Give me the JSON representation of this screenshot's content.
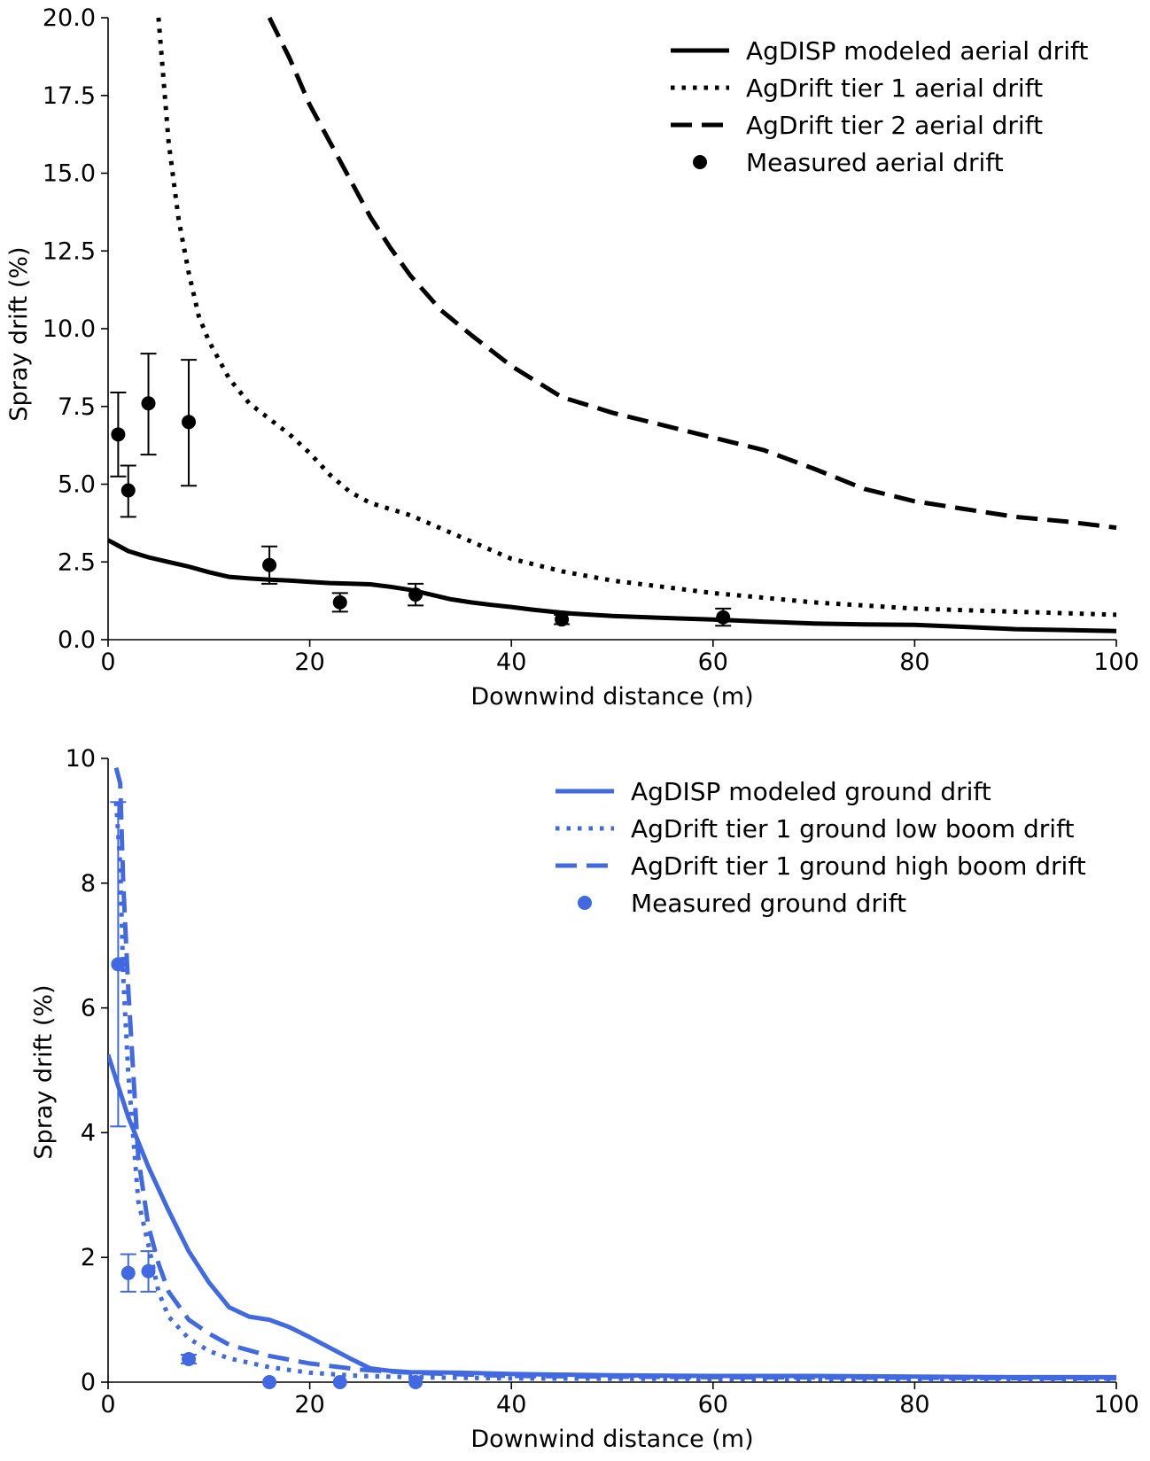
{
  "chart_data": [
    {
      "type": "line",
      "xlabel": "Downwind distance (m)",
      "ylabel": "Spray drift (%)",
      "xlim": [
        0,
        100
      ],
      "ylim": [
        0,
        20
      ],
      "xticks": [
        0,
        20,
        40,
        60,
        80,
        100
      ],
      "yticks": [
        0.0,
        2.5,
        5.0,
        7.5,
        10.0,
        12.5,
        15.0,
        17.5,
        20.0
      ],
      "ytick_labels": [
        "0.0",
        "2.5",
        "5.0",
        "7.5",
        "10.0",
        "12.5",
        "15.0",
        "17.5",
        "20.0"
      ],
      "xtick_labels": [
        "0",
        "20",
        "40",
        "60",
        "80",
        "100"
      ],
      "color": "#000000",
      "legend_position": "top-right",
      "series": [
        {
          "name": "AgDISP modeled aerial drift",
          "style": "solid",
          "x": [
            0,
            2,
            4,
            6,
            8,
            10,
            12,
            14,
            16,
            18,
            20,
            22,
            24,
            26,
            28,
            30,
            32,
            34,
            36,
            38,
            40,
            42,
            44,
            46,
            48,
            50,
            55,
            60,
            65,
            70,
            75,
            80,
            85,
            90,
            95,
            100
          ],
          "y": [
            3.2,
            2.85,
            2.65,
            2.5,
            2.35,
            2.17,
            2.02,
            1.97,
            1.93,
            1.9,
            1.86,
            1.82,
            1.8,
            1.78,
            1.7,
            1.6,
            1.45,
            1.3,
            1.2,
            1.12,
            1.05,
            0.97,
            0.9,
            0.84,
            0.8,
            0.76,
            0.7,
            0.65,
            0.58,
            0.52,
            0.49,
            0.48,
            0.41,
            0.34,
            0.31,
            0.28
          ]
        },
        {
          "name": "AgDrift tier 1 aerial drift",
          "style": "dotted",
          "x": [
            5,
            6,
            7,
            8,
            9,
            10,
            12,
            14,
            16,
            18,
            20,
            22,
            24,
            26,
            28,
            30,
            35,
            40,
            45,
            50,
            55,
            60,
            65,
            70,
            75,
            80,
            85,
            90,
            95,
            100
          ],
          "y": [
            20.0,
            16.0,
            13.5,
            11.8,
            10.4,
            9.6,
            8.4,
            7.6,
            7.1,
            6.6,
            6.0,
            5.3,
            4.75,
            4.4,
            4.2,
            4.0,
            3.3,
            2.6,
            2.2,
            1.9,
            1.7,
            1.5,
            1.35,
            1.2,
            1.1,
            1.0,
            0.95,
            0.9,
            0.85,
            0.8
          ]
        },
        {
          "name": "AgDrift tier 2 aerial drift",
          "style": "dashed",
          "x": [
            16,
            18,
            20,
            22,
            24,
            26,
            28,
            30,
            33,
            36,
            40,
            45,
            50,
            55,
            60,
            65,
            70,
            75,
            80,
            85,
            90,
            95,
            100
          ],
          "y": [
            20.0,
            18.7,
            17.2,
            16.0,
            14.8,
            13.6,
            12.6,
            11.7,
            10.6,
            9.8,
            8.8,
            7.8,
            7.3,
            6.9,
            6.5,
            6.1,
            5.5,
            4.85,
            4.45,
            4.2,
            3.95,
            3.8,
            3.6
          ]
        }
      ],
      "measured": {
        "name": "Measured aerial drift",
        "x": [
          1,
          2,
          4,
          8,
          16,
          23,
          30.5,
          45,
          61
        ],
        "y": [
          6.6,
          4.8,
          7.6,
          7.0,
          2.4,
          1.2,
          1.45,
          0.65,
          0.72
        ],
        "err_low": [
          5.25,
          3.95,
          5.95,
          4.95,
          1.8,
          0.9,
          1.1,
          0.5,
          0.45
        ],
        "err_high": [
          7.95,
          5.6,
          9.2,
          9.0,
          3.0,
          1.5,
          1.8,
          0.8,
          1.0
        ]
      }
    },
    {
      "type": "line",
      "xlabel": "Downwind distance (m)",
      "ylabel": "Spray drift (%)",
      "xlim": [
        0,
        100
      ],
      "ylim": [
        0,
        10
      ],
      "xticks": [
        0,
        20,
        40,
        60,
        80,
        100
      ],
      "yticks": [
        0,
        2,
        4,
        6,
        8,
        10
      ],
      "ytick_labels": [
        "0",
        "2",
        "4",
        "6",
        "8",
        "10"
      ],
      "xtick_labels": [
        "0",
        "20",
        "40",
        "60",
        "80",
        "100"
      ],
      "color": "#4169e1",
      "legend_position": "top-right",
      "series": [
        {
          "name": "AgDISP modeled ground drift",
          "style": "solid",
          "x": [
            0,
            2,
            4,
            6,
            8,
            10,
            12,
            14,
            16,
            18,
            20,
            22,
            24,
            26,
            28,
            30,
            35,
            40,
            50,
            60,
            70,
            80,
            90,
            100
          ],
          "y": [
            5.25,
            4.25,
            3.45,
            2.75,
            2.1,
            1.6,
            1.2,
            1.05,
            1.0,
            0.88,
            0.72,
            0.55,
            0.38,
            0.22,
            0.18,
            0.16,
            0.15,
            0.13,
            0.11,
            0.1,
            0.1,
            0.09,
            0.08,
            0.08
          ]
        },
        {
          "name": "AgDrift tier 1 ground low boom drift",
          "style": "dotted",
          "x": [
            0.8,
            1.2,
            1.5,
            2,
            3,
            4,
            5,
            6,
            8,
            10,
            12,
            16,
            20,
            25,
            30,
            40,
            60,
            80,
            100
          ],
          "y": [
            9.3,
            8.3,
            6.5,
            4.95,
            2.9,
            2.2,
            1.45,
            1.05,
            0.7,
            0.5,
            0.38,
            0.24,
            0.15,
            0.1,
            0.08,
            0.06,
            0.05,
            0.04,
            0.04
          ]
        },
        {
          "name": "AgDrift tier 1 ground high boom drift",
          "style": "dashed",
          "x": [
            0.8,
            1.2,
            1.5,
            2,
            3,
            4,
            5,
            6,
            8,
            10,
            12,
            16,
            20,
            25,
            30,
            40,
            60,
            80,
            100
          ],
          "y": [
            9.85,
            9.6,
            8.0,
            6.3,
            3.6,
            2.5,
            1.9,
            1.45,
            1.0,
            0.78,
            0.6,
            0.42,
            0.3,
            0.2,
            0.15,
            0.1,
            0.08,
            0.07,
            0.06
          ]
        }
      ],
      "measured": {
        "name": "Measured ground drift",
        "x": [
          1,
          2,
          4,
          8,
          16,
          23,
          30.5
        ],
        "y": [
          6.7,
          1.75,
          1.78,
          0.37,
          0.0,
          0.0,
          0.0
        ],
        "err_low": [
          4.1,
          1.45,
          1.45,
          0.3,
          0.0,
          0.0,
          0.0
        ],
        "err_high": [
          9.3,
          2.05,
          2.1,
          0.44,
          0.0,
          0.0,
          0.0
        ]
      }
    }
  ]
}
